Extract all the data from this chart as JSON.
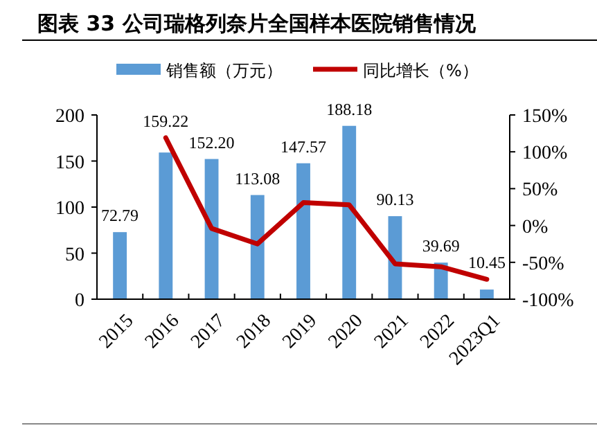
{
  "chart_data": {
    "type": "bar",
    "title": "图表 33 公司瑞格列奈片全国样本医院销售情况",
    "categories": [
      "2015",
      "2016",
      "2017",
      "2018",
      "2019",
      "2020",
      "2021",
      "2022",
      "2023Q1"
    ],
    "series": [
      {
        "name": "销售额（万元）",
        "color": "#5b9bd5",
        "values": [
          72.79,
          159.22,
          152.2,
          113.08,
          147.57,
          188.18,
          90.13,
          39.69,
          10.45
        ],
        "value_labels": [
          "72.79",
          "159.22",
          "152.20",
          "113.08",
          "147.57",
          "188.18",
          "90.13",
          "39.69",
          "10.45"
        ]
      },
      {
        "name": "同比增长（%）",
        "type": "line",
        "axis": "y2",
        "color": "#c00000",
        "values": [
          null,
          119,
          -4,
          -25,
          31,
          28,
          -52,
          -56,
          -73
        ]
      }
    ],
    "ylim": [
      0,
      200
    ],
    "yticks": [
      0,
      50,
      100,
      150,
      200
    ],
    "y2lim": [
      -100,
      150
    ],
    "y2ticks": [
      {
        "value": -100,
        "label": "-100%"
      },
      {
        "value": -50,
        "label": "-50%"
      },
      {
        "value": 0,
        "label": "0%"
      },
      {
        "value": 50,
        "label": "50%"
      },
      {
        "value": 100,
        "label": "100%"
      },
      {
        "value": 150,
        "label": "150%"
      }
    ],
    "grid": false,
    "legend": "top",
    "marker": "none",
    "line_style": "solid"
  }
}
